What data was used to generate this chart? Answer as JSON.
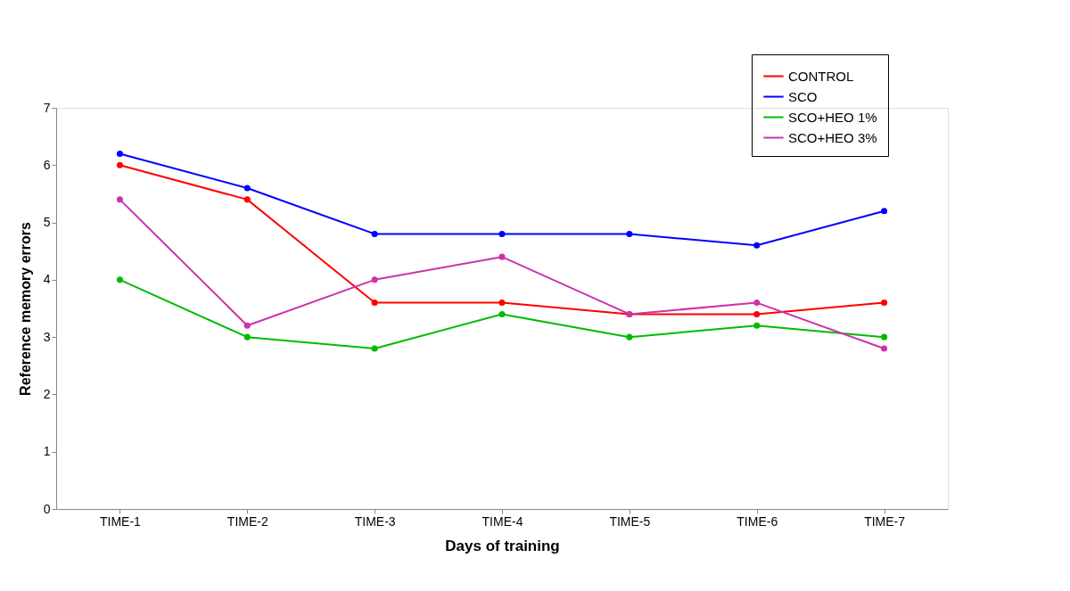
{
  "chart_data": {
    "type": "line",
    "xlabel": "Days of training",
    "ylabel": "Reference memory errors",
    "categories": [
      "TIME-1",
      "TIME-2",
      "TIME-3",
      "TIME-4",
      "TIME-5",
      "TIME-6",
      "TIME-7"
    ],
    "series": [
      {
        "name": "CONTROL",
        "color": "#ff0000",
        "values": [
          6.0,
          5.4,
          3.6,
          3.6,
          3.4,
          3.4,
          3.6
        ]
      },
      {
        "name": "SCO",
        "color": "#0000ff",
        "values": [
          6.2,
          5.6,
          4.8,
          4.8,
          4.8,
          4.6,
          5.2
        ]
      },
      {
        "name": "SCO+HEO 1%",
        "color": "#00bb00",
        "values": [
          4.0,
          3.0,
          2.8,
          3.4,
          3.0,
          3.2,
          3.0
        ]
      },
      {
        "name": "SCO+HEO 3%",
        "color": "#cc33aa",
        "values": [
          5.4,
          3.2,
          4.0,
          4.4,
          3.4,
          3.6,
          2.8
        ]
      }
    ],
    "ylim": [
      0,
      7
    ],
    "yticks": [
      0,
      1,
      2,
      3,
      4,
      5,
      6,
      7
    ],
    "grid": false,
    "legend": "top right",
    "marker": "circle",
    "line_style": "solid"
  }
}
